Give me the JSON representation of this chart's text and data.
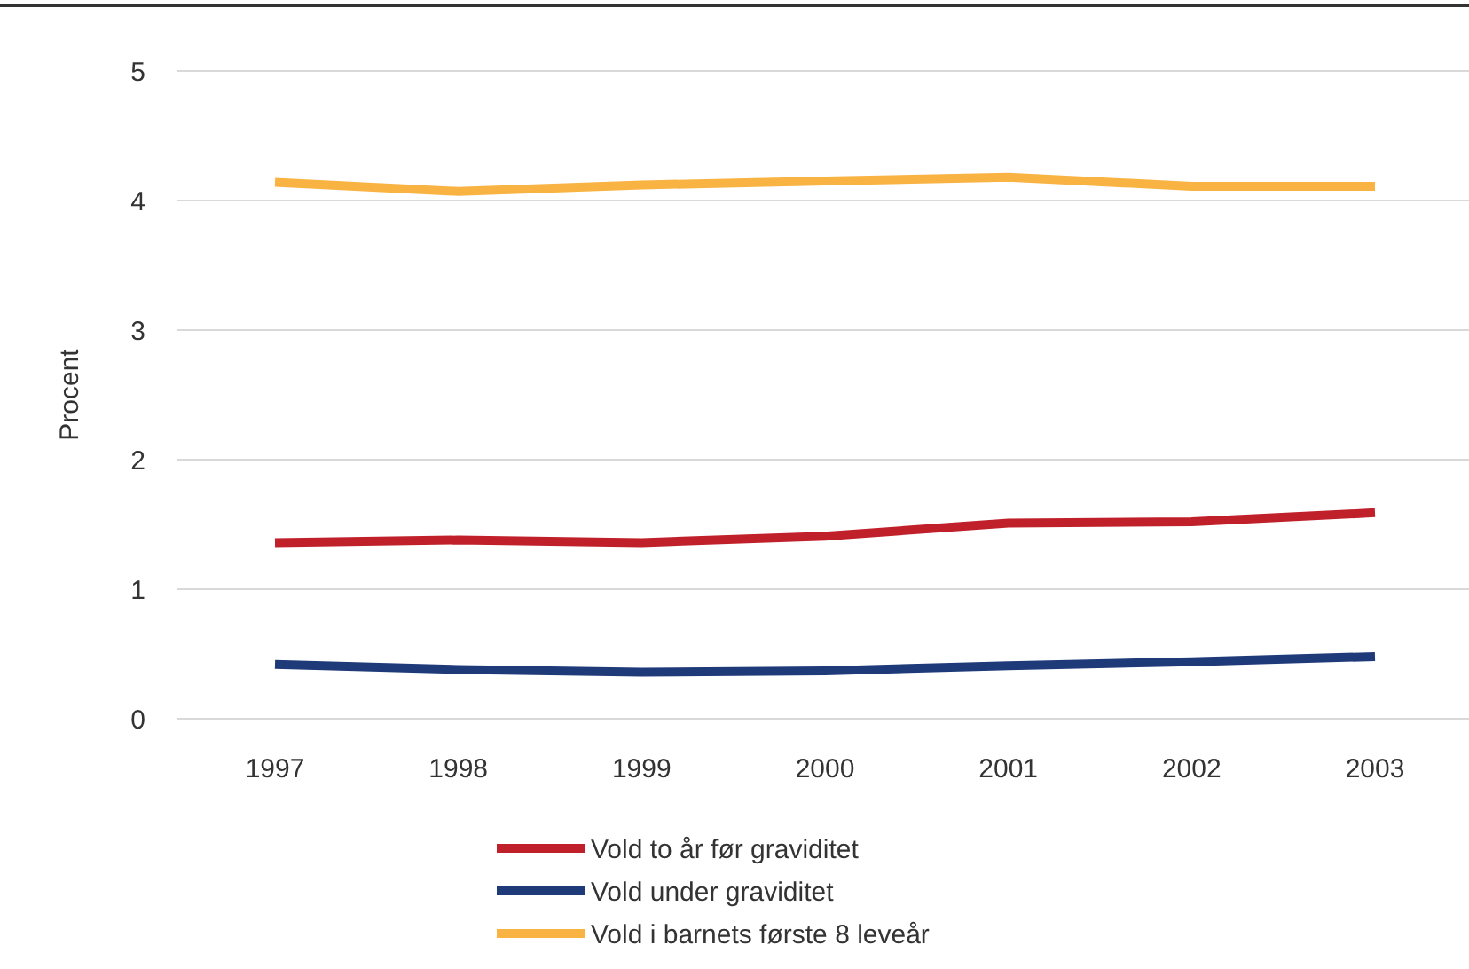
{
  "chart_data": {
    "type": "line",
    "ylabel": "Procent",
    "categories": [
      "1997",
      "1998",
      "1999",
      "2000",
      "2001",
      "2002",
      "2003"
    ],
    "series": [
      {
        "name": "Vold to år før graviditet",
        "color": "#c0202a",
        "values": [
          1.36,
          1.38,
          1.36,
          1.41,
          1.51,
          1.52,
          1.59
        ]
      },
      {
        "name": "Vold under graviditet",
        "color": "#1f3a78",
        "values": [
          0.42,
          0.38,
          0.36,
          0.37,
          0.41,
          0.44,
          0.48
        ]
      },
      {
        "name": "Vold i barnets første 8 leveår",
        "color": "#f9b343",
        "values": [
          4.14,
          4.07,
          4.12,
          4.15,
          4.18,
          4.11,
          4.11
        ]
      }
    ],
    "ylim": [
      0,
      5
    ],
    "yticks": [
      0,
      1,
      2,
      3,
      4,
      5
    ],
    "grid": "y",
    "legend": "bottom",
    "marker": "none",
    "line_style": "solid"
  }
}
